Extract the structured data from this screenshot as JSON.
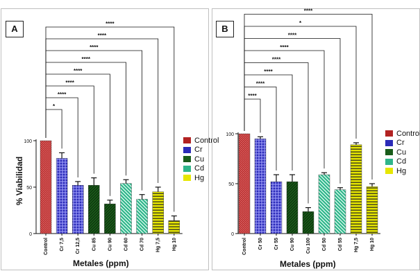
{
  "colors": {
    "control": "#b22222",
    "cr": "#2b2bb8",
    "cu": "#1a5c1a",
    "cd": "#2fb58a",
    "hg": "#e6e600"
  },
  "chart_data": [
    {
      "type": "bar",
      "panel_label": "A",
      "categories": [
        "Control",
        "Cr 7,5",
        "Cr 12,5",
        "Cu 85",
        "Cu 90",
        "Cd 60",
        "Cd 70",
        "Hg 7,5",
        "Hg 10"
      ],
      "groups": [
        "control",
        "cr",
        "cr",
        "cu",
        "cu",
        "cd",
        "cd",
        "hg",
        "hg"
      ],
      "values": [
        100,
        81,
        52,
        52,
        32,
        54,
        37,
        45,
        14
      ],
      "errors": [
        0,
        6,
        4,
        8,
        4,
        4,
        5,
        5,
        5
      ],
      "xlabel": "Metales (ppm)",
      "ylabel": "% Viabilidad",
      "yticks": [
        0,
        50,
        100
      ],
      "ylim": [
        0,
        100
      ],
      "legend": [
        "Control",
        "Cr",
        "Cu",
        "Cd",
        "Hg"
      ],
      "legend_position": "right",
      "significance": [
        "*",
        "****",
        "****",
        "****",
        "****",
        "****",
        "****",
        "****"
      ]
    },
    {
      "type": "bar",
      "panel_label": "B",
      "categories": [
        "Control",
        "Cr 50",
        "Cr 55",
        "Cu 90",
        "Cu 100",
        "Cd 50",
        "Cd 55",
        "Hg 7,5",
        "Hg 10"
      ],
      "groups": [
        "control",
        "cr",
        "cr",
        "cu",
        "cu",
        "cd",
        "cd",
        "hg",
        "hg"
      ],
      "values": [
        100,
        95,
        52,
        52,
        22,
        59,
        44,
        89,
        47
      ],
      "errors": [
        0,
        2,
        7,
        7,
        4,
        2,
        2,
        2,
        3
      ],
      "xlabel": "Metales (ppm)",
      "ylabel": "",
      "yticks": [
        0,
        50,
        100
      ],
      "ylim": [
        0,
        100
      ],
      "legend": [
        "Control",
        "Cr",
        "Cu",
        "Cd",
        "Hg"
      ],
      "legend_position": "right",
      "significance": [
        "****",
        "****",
        "****",
        "****",
        "****",
        "****",
        "*",
        "****"
      ]
    }
  ]
}
